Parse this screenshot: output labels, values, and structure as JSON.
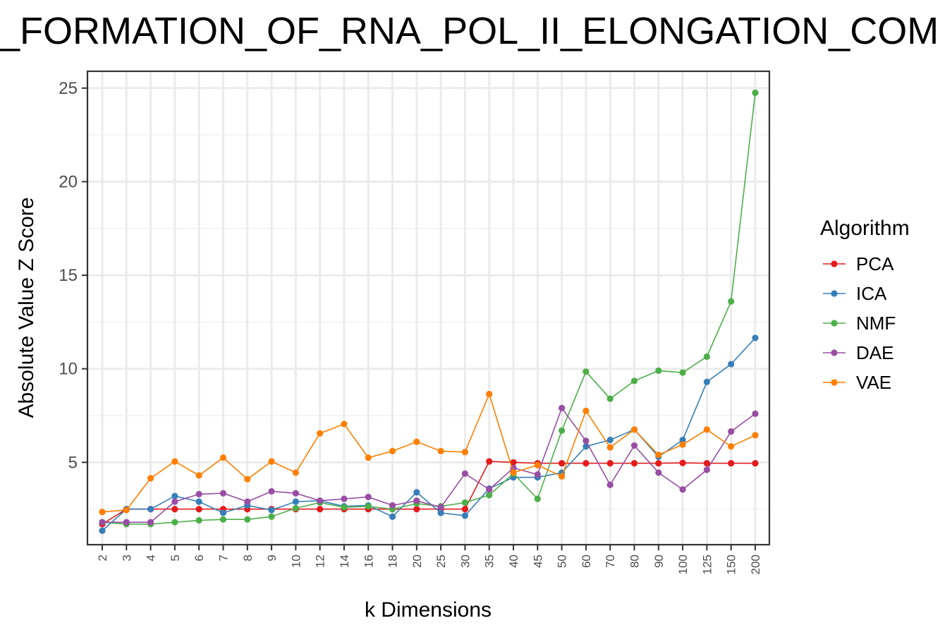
{
  "chart_data": {
    "type": "line",
    "title": "_FORMATION_OF_RNA_POL_II_ELONGATION_COM",
    "xlabel": "k Dimensions",
    "ylabel": "Absolute Value Z Score",
    "categories": [
      "2",
      "3",
      "4",
      "5",
      "6",
      "7",
      "8",
      "9",
      "10",
      "12",
      "14",
      "16",
      "18",
      "20",
      "25",
      "30",
      "35",
      "40",
      "45",
      "50",
      "60",
      "70",
      "80",
      "90",
      "100",
      "125",
      "150",
      "200"
    ],
    "ylim": [
      0.6,
      25.9
    ],
    "yticks": [
      5,
      10,
      15,
      20,
      25
    ],
    "grid": true,
    "legend": {
      "title": "Algorithm",
      "position": "right"
    },
    "series": [
      {
        "name": "PCA",
        "color": "#e41a1c",
        "values": [
          1.7,
          2.5,
          2.5,
          2.5,
          2.5,
          2.5,
          2.5,
          2.5,
          2.5,
          2.5,
          2.5,
          2.5,
          2.5,
          2.5,
          2.5,
          2.5,
          5.05,
          5.0,
          4.95,
          4.95,
          4.95,
          4.95,
          4.95,
          4.95,
          4.97,
          4.95,
          4.95,
          4.95
        ]
      },
      {
        "name": "ICA",
        "color": "#377eb8",
        "values": [
          1.35,
          2.5,
          2.5,
          3.2,
          2.9,
          2.3,
          2.7,
          2.45,
          2.9,
          2.95,
          2.65,
          2.7,
          2.1,
          3.4,
          2.3,
          2.15,
          3.6,
          4.2,
          4.2,
          4.45,
          5.85,
          6.2,
          6.75,
          5.3,
          6.2,
          9.3,
          10.25,
          11.65
        ]
      },
      {
        "name": "NMF",
        "color": "#4daf4a",
        "values": [
          1.8,
          1.7,
          1.7,
          1.8,
          1.9,
          1.95,
          1.95,
          2.1,
          2.55,
          2.85,
          2.6,
          2.65,
          2.5,
          2.8,
          2.65,
          2.85,
          3.25,
          4.4,
          3.05,
          6.7,
          9.85,
          8.4,
          9.35,
          9.9,
          9.8,
          10.65,
          13.6,
          24.75
        ]
      },
      {
        "name": "DAE",
        "color": "#984ea3",
        "values": [
          1.8,
          1.8,
          1.8,
          2.9,
          3.3,
          3.35,
          2.9,
          3.45,
          3.35,
          2.95,
          3.05,
          3.15,
          2.7,
          2.95,
          2.6,
          4.4,
          3.55,
          4.7,
          4.35,
          7.9,
          6.15,
          3.8,
          5.9,
          4.45,
          3.55,
          4.6,
          6.65,
          7.6
        ]
      },
      {
        "name": "VAE",
        "color": "#ff7f00",
        "values": [
          2.35,
          2.45,
          4.15,
          5.05,
          4.3,
          5.25,
          4.1,
          5.05,
          4.45,
          6.55,
          7.05,
          5.25,
          5.6,
          6.1,
          5.6,
          5.55,
          8.65,
          4.45,
          4.85,
          4.25,
          7.75,
          5.8,
          6.75,
          5.4,
          5.95,
          6.75,
          5.85,
          6.45
        ]
      }
    ]
  }
}
